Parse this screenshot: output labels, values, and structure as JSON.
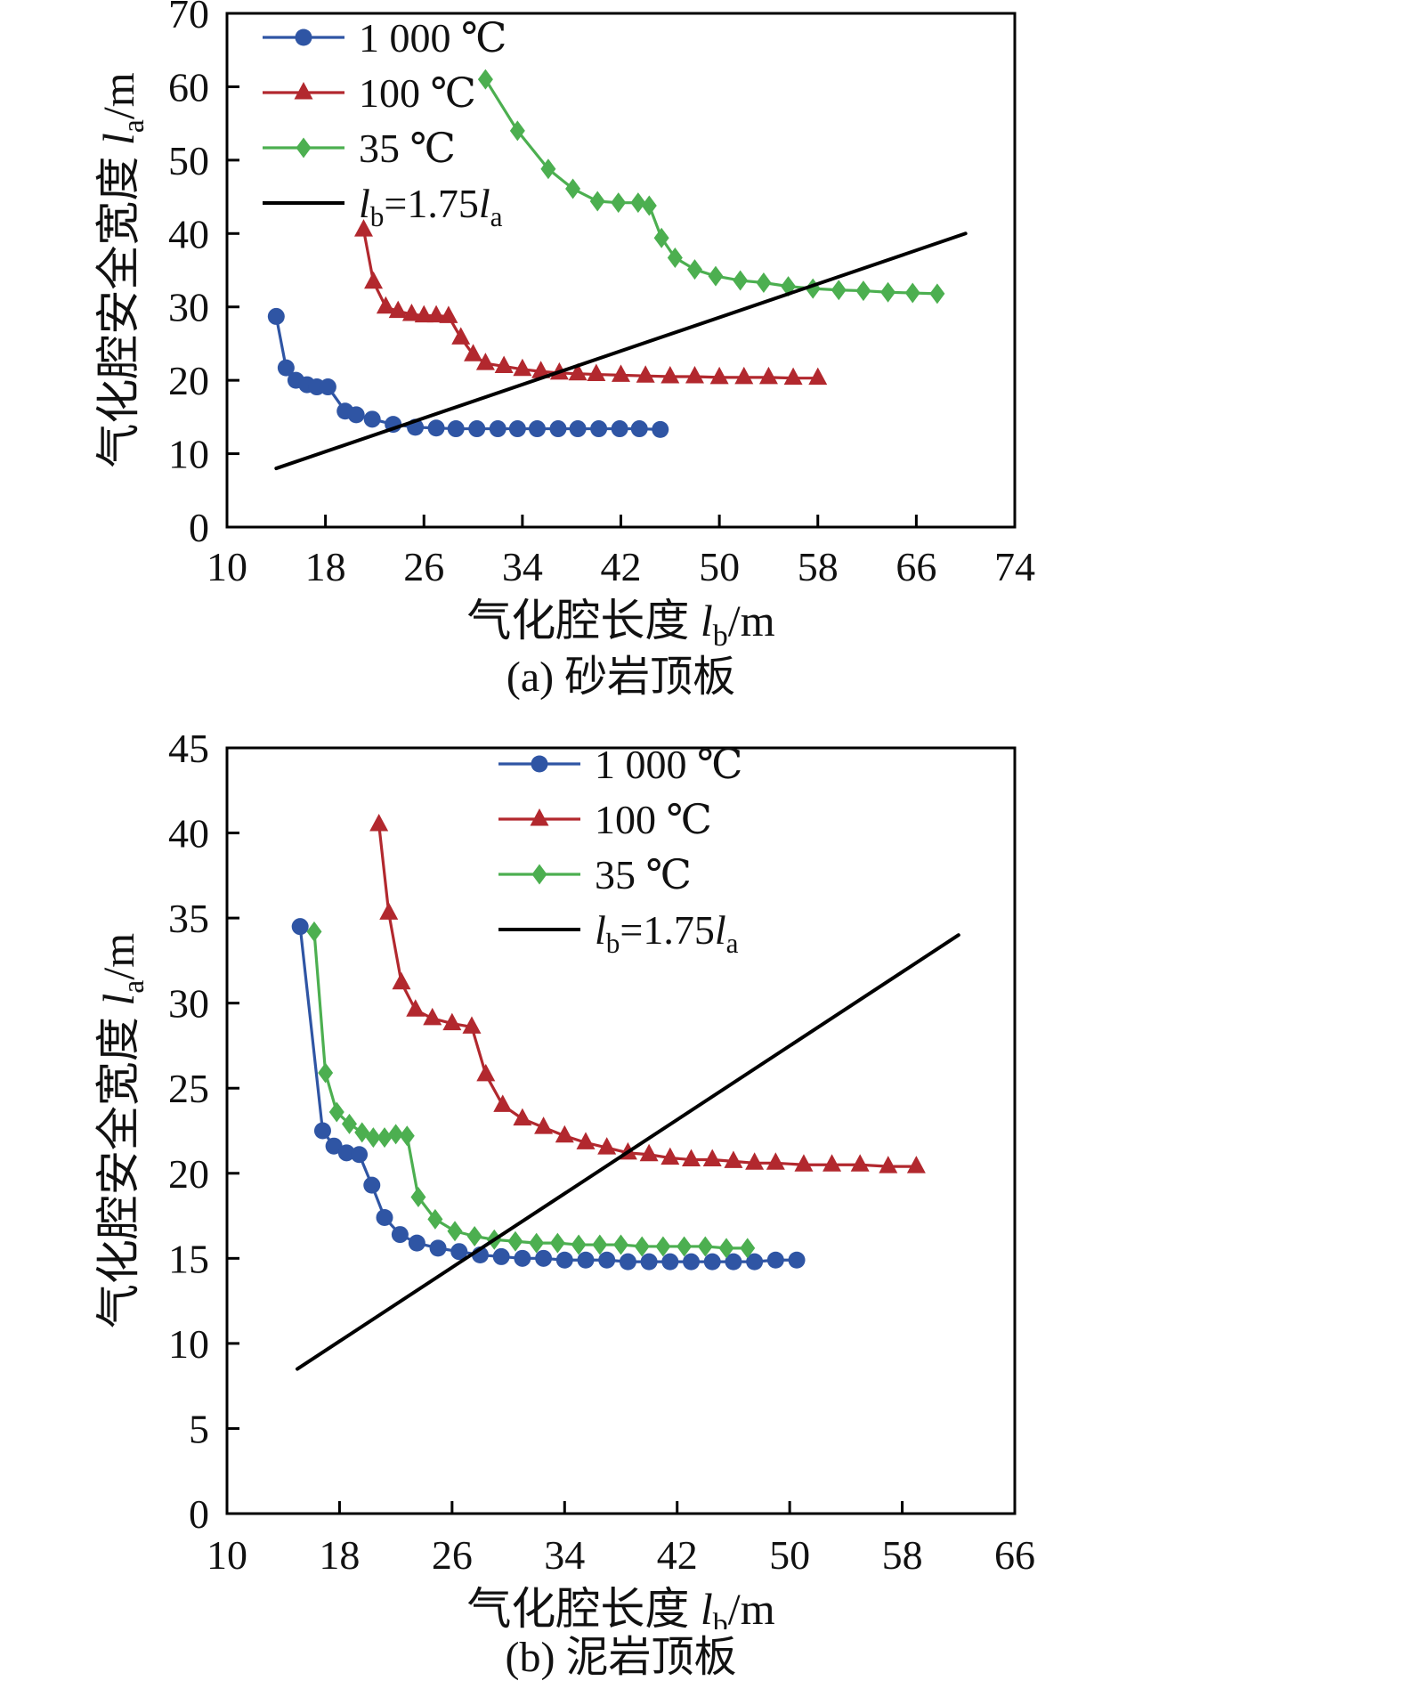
{
  "figure": {
    "background": "#ffffff",
    "captions": {
      "a": "(a) 砂岩顶板",
      "b": "(b) 泥岩顶板"
    }
  },
  "chart_data": [
    {
      "id": "a",
      "type": "line",
      "title": "(a) 砂岩顶板",
      "xlabel": "气化腔长度 {l_b}/m",
      "ylabel": "气化腔安全宽度 {l_a}/m",
      "xlim": [
        10,
        74
      ],
      "ylim": [
        0,
        70
      ],
      "xticks": [
        10,
        18,
        26,
        34,
        42,
        50,
        58,
        66,
        74
      ],
      "yticks": [
        0,
        10,
        20,
        30,
        40,
        50,
        60,
        70
      ],
      "grid": false,
      "legend_position": "top-left",
      "series": [
        {
          "name": "1 000 ℃",
          "color": "#2f55a4",
          "marker": "circle",
          "x": [
            14,
            14.8,
            15.6,
            16.5,
            17.3,
            18.2,
            19.6,
            20.5,
            21.8,
            23.5,
            25.3,
            27,
            28.6,
            30.3,
            32,
            33.6,
            35.2,
            36.9,
            38.5,
            40.2,
            41.9,
            43.5,
            45.2
          ],
          "y": [
            28.7,
            21.7,
            20.0,
            19.4,
            19.1,
            19.1,
            15.8,
            15.3,
            14.7,
            14.0,
            13.6,
            13.5,
            13.4,
            13.4,
            13.4,
            13.4,
            13.4,
            13.4,
            13.4,
            13.4,
            13.4,
            13.4,
            13.3
          ]
        },
        {
          "name": "100 ℃",
          "color": "#b2282e",
          "marker": "triangle",
          "x": [
            21.1,
            21.9,
            22.9,
            23.9,
            25,
            26,
            27,
            28,
            29,
            30,
            31,
            32.5,
            34,
            35.5,
            37,
            38.5,
            40,
            42,
            44,
            46,
            48,
            50,
            52,
            54,
            56,
            58
          ],
          "y": [
            40.5,
            33.4,
            30.0,
            29.4,
            29.0,
            28.8,
            28.8,
            28.7,
            25.8,
            23.5,
            22.3,
            21.9,
            21.5,
            21.2,
            21.0,
            20.9,
            20.8,
            20.7,
            20.6,
            20.5,
            20.5,
            20.4,
            20.4,
            20.4,
            20.3,
            20.3
          ]
        },
        {
          "name": "35 ℃",
          "color": "#4caf50",
          "marker": "diamond",
          "x": [
            31,
            33.6,
            36.1,
            38.1,
            40.1,
            41.8,
            43.4,
            44.3,
            45.3,
            46.4,
            48,
            49.7,
            51.7,
            53.6,
            55.6,
            57.6,
            59.7,
            61.7,
            63.7,
            65.7,
            67.7
          ],
          "y": [
            61,
            54,
            48.8,
            46.1,
            44.4,
            44.2,
            44.2,
            43.8,
            39.4,
            36.7,
            35.1,
            34.2,
            33.6,
            33.3,
            32.8,
            32.5,
            32.3,
            32.2,
            32.0,
            31.9,
            31.8
          ]
        },
        {
          "name": "{l_b}=1.75{l_a}",
          "color": "#000000",
          "marker": "none",
          "x": [
            14,
            70
          ],
          "y": [
            8,
            40
          ]
        }
      ]
    },
    {
      "id": "b",
      "type": "line",
      "title": "(b) 泥岩顶板",
      "xlabel": "气化腔长度 {l_b}/m",
      "ylabel": "气化腔安全宽度 {l_a}/m",
      "xlim": [
        10,
        66
      ],
      "ylim": [
        0,
        45
      ],
      "xticks": [
        10,
        18,
        26,
        34,
        42,
        50,
        58,
        66
      ],
      "yticks": [
        0,
        5,
        10,
        15,
        20,
        25,
        30,
        35,
        40,
        45
      ],
      "grid": false,
      "legend_position": "top-center",
      "series": [
        {
          "name": "1 000 ℃",
          "color": "#2f55a4",
          "marker": "circle",
          "x": [
            15.2,
            16.8,
            17.6,
            18.5,
            19.4,
            20.3,
            21.2,
            22.3,
            23.5,
            25,
            26.5,
            28,
            29.5,
            31,
            32.5,
            34,
            35.5,
            37,
            38.5,
            40,
            41.5,
            43,
            44.5,
            46,
            47.5,
            49,
            50.5
          ],
          "y": [
            34.5,
            22.5,
            21.6,
            21.2,
            21.1,
            19.3,
            17.4,
            16.4,
            15.9,
            15.6,
            15.4,
            15.2,
            15.1,
            15.0,
            15.0,
            14.9,
            14.9,
            14.9,
            14.8,
            14.8,
            14.8,
            14.8,
            14.8,
            14.8,
            14.8,
            14.9,
            14.9
          ]
        },
        {
          "name": "100 ℃",
          "color": "#b2282e",
          "marker": "triangle",
          "x": [
            20.8,
            21.5,
            22.4,
            23.4,
            24.6,
            26,
            27.4,
            28.4,
            29.6,
            31,
            32.5,
            34,
            35.5,
            37,
            38.5,
            40,
            41.5,
            43,
            44.5,
            46,
            47.5,
            49,
            51,
            53,
            55,
            57,
            59
          ],
          "y": [
            40.5,
            35.3,
            31.2,
            29.6,
            29.1,
            28.8,
            28.6,
            25.8,
            24.0,
            23.2,
            22.7,
            22.2,
            21.8,
            21.5,
            21.2,
            21.1,
            20.9,
            20.8,
            20.8,
            20.7,
            20.6,
            20.6,
            20.5,
            20.5,
            20.5,
            20.4,
            20.4
          ]
        },
        {
          "name": "35 ℃",
          "color": "#4caf50",
          "marker": "diamond",
          "x": [
            16.2,
            17,
            17.8,
            18.7,
            19.6,
            20.4,
            21.2,
            22,
            22.8,
            23.6,
            24.8,
            26.2,
            27.6,
            29,
            30.5,
            32,
            33.5,
            35,
            36.5,
            38,
            39.5,
            41,
            42.5,
            44,
            45.5,
            47
          ],
          "y": [
            34.2,
            25.9,
            23.6,
            22.9,
            22.4,
            22.1,
            22.1,
            22.3,
            22.2,
            18.6,
            17.3,
            16.6,
            16.3,
            16.1,
            16.0,
            15.9,
            15.9,
            15.8,
            15.8,
            15.8,
            15.7,
            15.7,
            15.7,
            15.7,
            15.6,
            15.6
          ]
        },
        {
          "name": "{l_b}=1.75{l_a}",
          "color": "#000000",
          "marker": "none",
          "x": [
            15,
            62
          ],
          "y": [
            8.5,
            34
          ]
        }
      ]
    }
  ]
}
